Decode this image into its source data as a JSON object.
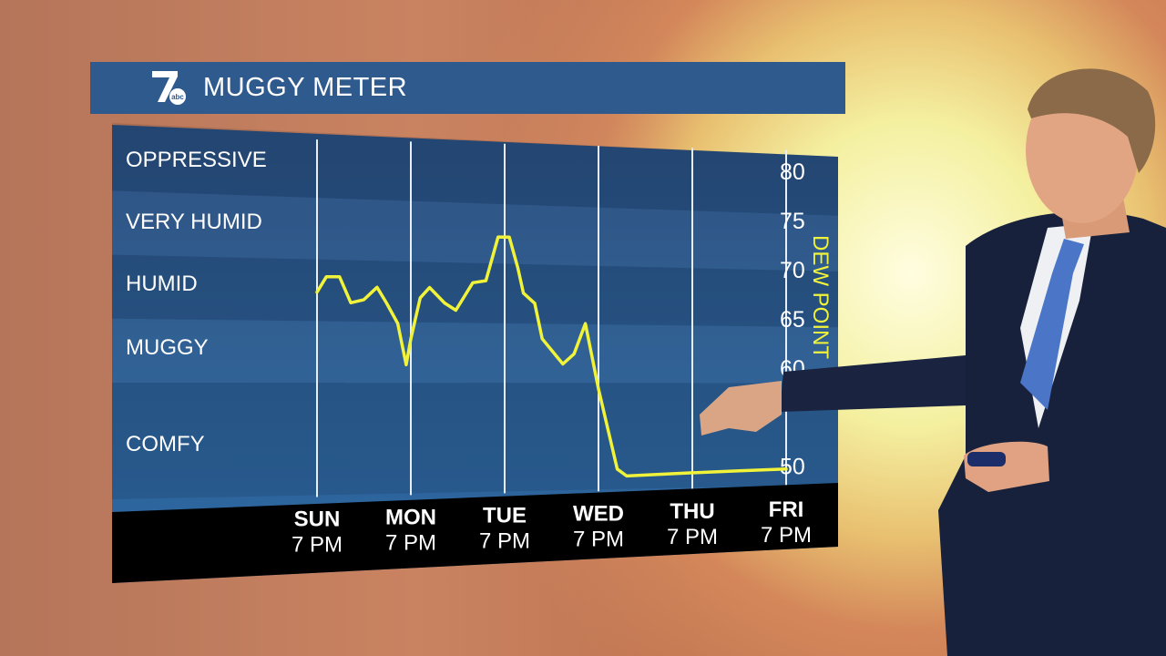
{
  "header": {
    "logo_text": "7abc",
    "title": "MUGGY METER"
  },
  "chart_data": {
    "type": "line",
    "title": "MUGGY METER",
    "ylabel": "DEW POINT",
    "y_ticks": [
      80,
      75,
      70,
      65,
      60,
      50
    ],
    "ylim": [
      48,
      82
    ],
    "categories": [
      {
        "day": "SUN",
        "time": "7 PM"
      },
      {
        "day": "MON",
        "time": "7 PM"
      },
      {
        "day": "TUE",
        "time": "7 PM"
      },
      {
        "day": "WED",
        "time": "7 PM"
      },
      {
        "day": "THU",
        "time": "7 PM"
      },
      {
        "day": "FRI",
        "time": "7 PM"
      }
    ],
    "bands": [
      "OPPRESSIVE",
      "VERY HUMID",
      "HUMID",
      "MUGGY",
      "COMFY"
    ],
    "line_color": "#f0f33a",
    "series": [
      {
        "x": [
          0,
          0.1,
          0.24,
          0.36,
          0.5,
          0.64,
          0.74,
          0.86,
          0.95,
          1.0,
          1.1,
          1.2,
          1.36,
          1.48,
          1.66,
          1.8,
          1.93,
          2.05,
          2.14,
          2.2,
          2.32,
          2.4,
          2.62,
          2.74,
          2.86,
          3.0,
          3.2,
          3.3,
          4.0,
          4.5,
          5.0
        ],
        "values": [
          67.5,
          69,
          69,
          66.5,
          66.8,
          68,
          66.5,
          64.5,
          60.5,
          63,
          67,
          68,
          66.5,
          65.8,
          68.5,
          68.7,
          73,
          73,
          70,
          67.5,
          66.5,
          63,
          60.5,
          61.5,
          64.5,
          58,
          50,
          49.3,
          49.5,
          49.6,
          49.7
        ]
      }
    ]
  }
}
